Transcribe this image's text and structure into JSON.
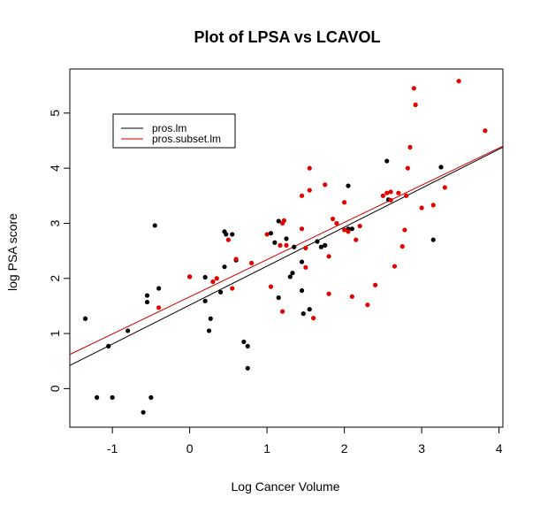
{
  "chart_data": {
    "type": "scatter",
    "title": "Plot of LPSA vs LCAVOL",
    "xlabel": "Log Cancer Volume",
    "ylabel": "log PSA score",
    "xlim": [
      -1.55,
      4.05
    ],
    "ylim": [
      -0.7,
      5.8
    ],
    "xticks": [
      -1,
      0,
      1,
      2,
      3,
      4
    ],
    "yticks": [
      0,
      1,
      2,
      3,
      4,
      5
    ],
    "grid": false,
    "legend_position": "top-left",
    "series": [
      {
        "color": "#000000",
        "points": [
          [
            -1.35,
            1.27
          ],
          [
            -1.2,
            -0.16
          ],
          [
            -1.05,
            0.77
          ],
          [
            -1.0,
            -0.16
          ],
          [
            -0.8,
            1.05
          ],
          [
            -0.6,
            -0.43
          ],
          [
            -0.55,
            1.57
          ],
          [
            -0.55,
            1.69
          ],
          [
            -0.5,
            -0.16
          ],
          [
            -0.45,
            2.96
          ],
          [
            -0.4,
            1.82
          ],
          [
            0.0,
            2.03
          ],
          [
            0.2,
            2.02
          ],
          [
            0.2,
            1.59
          ],
          [
            0.25,
            1.05
          ],
          [
            0.27,
            1.27
          ],
          [
            0.4,
            1.75
          ],
          [
            0.45,
            2.85
          ],
          [
            0.45,
            2.21
          ],
          [
            0.47,
            2.8
          ],
          [
            0.55,
            2.8
          ],
          [
            0.6,
            2.33
          ],
          [
            0.7,
            0.85
          ],
          [
            0.75,
            0.77
          ],
          [
            0.75,
            0.37
          ],
          [
            1.05,
            2.82
          ],
          [
            1.1,
            2.65
          ],
          [
            1.15,
            1.65
          ],
          [
            1.15,
            3.04
          ],
          [
            1.25,
            2.72
          ],
          [
            1.3,
            2.03
          ],
          [
            1.33,
            2.1
          ],
          [
            1.35,
            2.57
          ],
          [
            1.45,
            2.3
          ],
          [
            1.45,
            1.78
          ],
          [
            1.47,
            1.36
          ],
          [
            1.55,
            1.44
          ],
          [
            1.65,
            2.67
          ],
          [
            1.7,
            2.57
          ],
          [
            1.75,
            2.6
          ],
          [
            2.05,
            2.9
          ],
          [
            2.05,
            3.68
          ],
          [
            2.1,
            2.9
          ],
          [
            2.55,
            4.13
          ],
          [
            2.57,
            3.43
          ],
          [
            3.15,
            2.7
          ],
          [
            3.25,
            4.02
          ]
        ]
      },
      {
        "color": "#e00000",
        "points": [
          [
            -0.4,
            1.47
          ],
          [
            0.0,
            2.03
          ],
          [
            0.3,
            1.94
          ],
          [
            0.35,
            2.0
          ],
          [
            0.5,
            2.7
          ],
          [
            0.55,
            1.82
          ],
          [
            0.6,
            2.35
          ],
          [
            0.8,
            2.28
          ],
          [
            1.0,
            2.8
          ],
          [
            1.05,
            1.85
          ],
          [
            1.17,
            2.6
          ],
          [
            1.2,
            1.4
          ],
          [
            1.2,
            3.0
          ],
          [
            1.22,
            3.05
          ],
          [
            1.25,
            2.6
          ],
          [
            1.45,
            3.5
          ],
          [
            1.45,
            2.9
          ],
          [
            1.5,
            2.2
          ],
          [
            1.5,
            2.55
          ],
          [
            1.55,
            3.6
          ],
          [
            1.55,
            4.0
          ],
          [
            1.6,
            1.28
          ],
          [
            1.75,
            3.7
          ],
          [
            1.8,
            2.4
          ],
          [
            1.8,
            1.72
          ],
          [
            1.85,
            3.08
          ],
          [
            1.9,
            3.0
          ],
          [
            2.0,
            3.38
          ],
          [
            2.0,
            2.88
          ],
          [
            2.05,
            2.85
          ],
          [
            2.1,
            1.67
          ],
          [
            2.15,
            2.7
          ],
          [
            2.2,
            2.95
          ],
          [
            2.3,
            1.52
          ],
          [
            2.4,
            1.88
          ],
          [
            2.5,
            3.5
          ],
          [
            2.55,
            3.55
          ],
          [
            2.6,
            3.42
          ],
          [
            2.6,
            3.57
          ],
          [
            2.65,
            2.22
          ],
          [
            2.7,
            3.55
          ],
          [
            2.75,
            2.58
          ],
          [
            2.78,
            2.88
          ],
          [
            2.8,
            3.5
          ],
          [
            2.82,
            4.0
          ],
          [
            2.85,
            4.38
          ],
          [
            2.9,
            5.45
          ],
          [
            2.92,
            5.15
          ],
          [
            3.0,
            3.28
          ],
          [
            3.15,
            3.33
          ],
          [
            3.3,
            3.65
          ],
          [
            3.48,
            5.58
          ],
          [
            3.82,
            4.68
          ]
        ]
      }
    ],
    "lines": [
      {
        "name": "pros.lm",
        "color": "#000000",
        "x": [
          -1.55,
          4.05
        ],
        "y": [
          0.42,
          4.38
        ]
      },
      {
        "name": "pros.subset.lm",
        "color": "#cc0000",
        "x": [
          -1.55,
          4.05
        ],
        "y": [
          0.62,
          4.4
        ]
      }
    ]
  }
}
